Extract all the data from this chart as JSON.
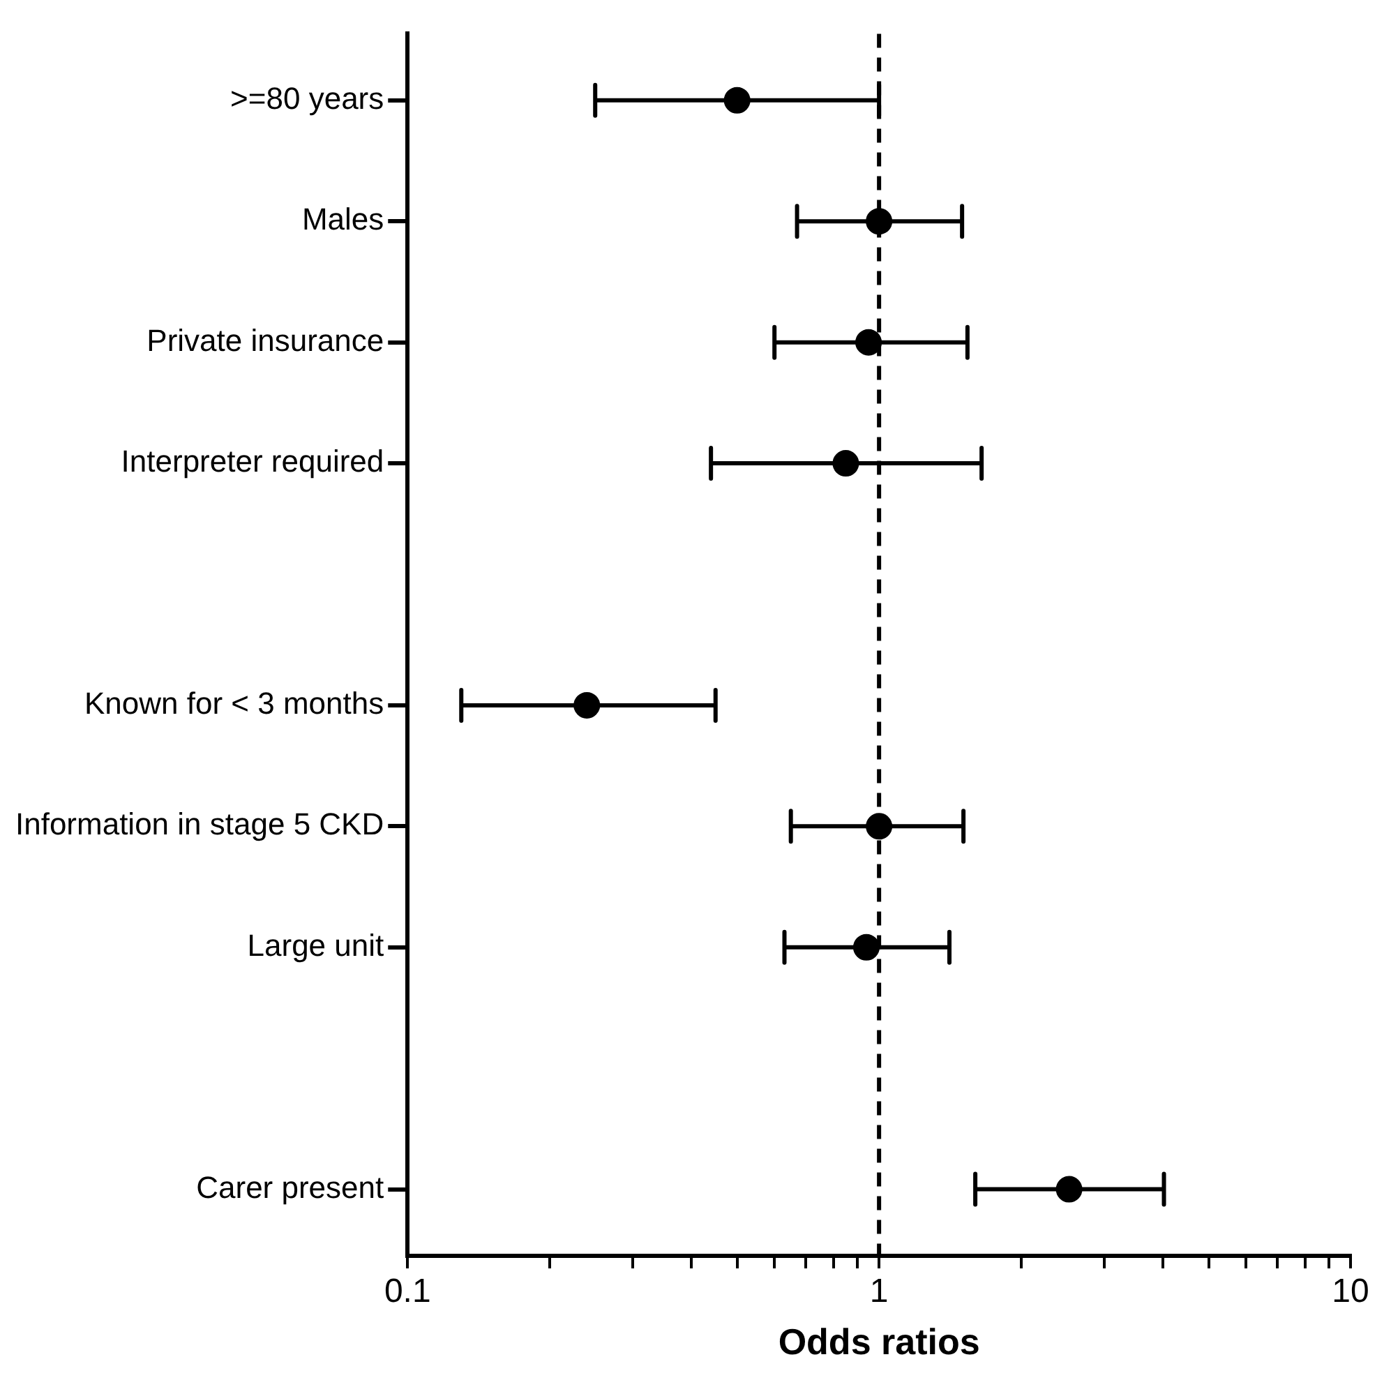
{
  "chart_data": {
    "type": "scatter",
    "orientation": "horizontal",
    "categories": [
      ">=80 years",
      "Males",
      "Private insurance",
      "Interpreter required",
      null,
      "Known for < 3 months",
      "Information in stage 5 CKD",
      "Large unit",
      null,
      "Carer present"
    ],
    "values": [
      0.5,
      1.0,
      0.95,
      0.85,
      null,
      0.24,
      1.0,
      0.94,
      null,
      2.53
    ],
    "errors": [
      [
        0.25,
        1.0
      ],
      [
        0.67,
        1.5
      ],
      [
        0.6,
        1.54
      ],
      [
        0.44,
        1.65
      ],
      null,
      [
        0.13,
        0.45
      ],
      [
        0.65,
        1.51
      ],
      [
        0.63,
        1.41
      ],
      null,
      [
        1.6,
        4.02
      ]
    ],
    "color": "#000000",
    "marker": "circle",
    "log": "x",
    "xlim": [
      0.1,
      10
    ],
    "xticks": [
      0.1,
      {
        "value": 0.2,
        "label": null
      },
      {
        "value": 0.3,
        "label": null
      },
      {
        "value": 0.4,
        "label": null
      },
      {
        "value": 0.5,
        "label": null
      },
      {
        "value": 0.6,
        "label": null
      },
      {
        "value": 0.7,
        "label": null
      },
      {
        "value": 0.8,
        "label": null
      },
      {
        "value": 0.9,
        "label": null
      },
      1,
      {
        "value": 2,
        "label": null
      },
      {
        "value": 3,
        "label": null
      },
      {
        "value": 4,
        "label": null
      },
      {
        "value": 5,
        "label": null
      },
      {
        "value": 6,
        "label": null
      },
      {
        "value": 7,
        "label": null
      },
      {
        "value": 8,
        "label": null
      },
      {
        "value": 9,
        "label": null
      },
      10
    ],
    "xlabel": "Odds ratios",
    "ref_lines": [
      {
        "axis": "x",
        "value": 1,
        "color": "#000000",
        "line_style": "dashed"
      }
    ],
    "legend": false,
    "grid": false
  }
}
